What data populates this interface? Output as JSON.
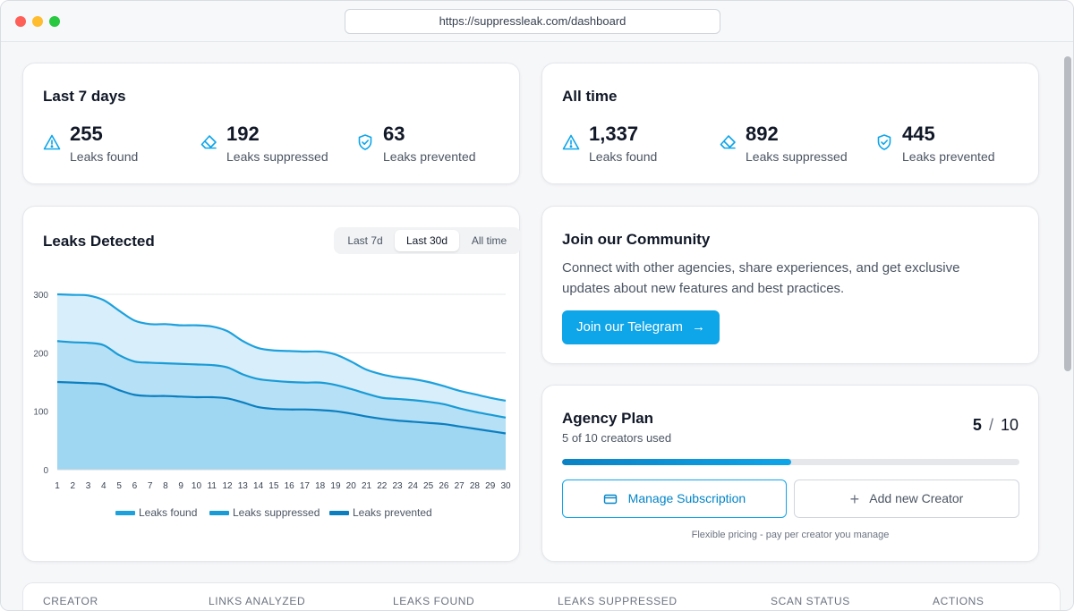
{
  "browser": {
    "url": "https://suppressleak.com/dashboard"
  },
  "last7": {
    "title": "Last 7 days",
    "stats": [
      {
        "value": "255",
        "label": "Leaks found",
        "icon": "warning-triangle-icon"
      },
      {
        "value": "192",
        "label": "Leaks suppressed",
        "icon": "eraser-icon"
      },
      {
        "value": "63",
        "label": "Leaks prevented",
        "icon": "shield-check-icon"
      }
    ]
  },
  "alltime": {
    "title": "All time",
    "stats": [
      {
        "value": "1,337",
        "label": "Leaks found",
        "icon": "warning-triangle-icon"
      },
      {
        "value": "892",
        "label": "Leaks suppressed",
        "icon": "eraser-icon"
      },
      {
        "value": "445",
        "label": "Leaks prevented",
        "icon": "shield-check-icon"
      }
    ]
  },
  "leaks_chart": {
    "title": "Leaks Detected",
    "range_tabs": [
      "Last 7d",
      "Last 30d",
      "All time"
    ],
    "active_tab": "Last 30d"
  },
  "chart_data": {
    "type": "area",
    "title": "Leaks Detected",
    "x": [
      1,
      2,
      3,
      4,
      5,
      6,
      7,
      8,
      9,
      10,
      11,
      12,
      13,
      14,
      15,
      16,
      17,
      18,
      19,
      20,
      21,
      22,
      23,
      24,
      25,
      26,
      27,
      28,
      29,
      30
    ],
    "ylim": [
      0,
      300
    ],
    "yticks": [
      0,
      100,
      200,
      300
    ],
    "grid": true,
    "legend_position": "bottom",
    "series": [
      {
        "name": "Leaks found",
        "color": "#1da1dd",
        "fill": "#d8eefa",
        "values": [
          300,
          299,
          298,
          290,
          272,
          255,
          249,
          249,
          247,
          247,
          245,
          237,
          220,
          208,
          204,
          203,
          202,
          202,
          197,
          185,
          171,
          163,
          158,
          155,
          150,
          143,
          135,
          129,
          123,
          118
        ]
      },
      {
        "name": "Leaks suppressed",
        "color": "#199bd6",
        "fill": "#b5e0f5",
        "values": [
          220,
          218,
          217,
          213,
          196,
          185,
          183,
          182,
          181,
          180,
          179,
          175,
          163,
          155,
          152,
          150,
          149,
          149,
          145,
          138,
          130,
          123,
          121,
          119,
          116,
          112,
          105,
          99,
          94,
          89
        ]
      },
      {
        "name": "Leaks prevented",
        "color": "#0c7fc0",
        "fill": "#9fd6f2",
        "values": [
          150,
          149,
          148,
          146,
          136,
          128,
          126,
          126,
          125,
          124,
          124,
          122,
          115,
          107,
          104,
          103,
          103,
          102,
          100,
          96,
          91,
          87,
          84,
          82,
          80,
          78,
          74,
          70,
          66,
          62
        ]
      }
    ]
  },
  "community": {
    "title": "Join our Community",
    "description": "Connect with other agencies, share experiences, and get exclusive updates about new features and best practices.",
    "button_label": "Join our Telegram",
    "button_arrow": "→"
  },
  "plan": {
    "title": "Agency Plan",
    "used": "5",
    "separator": "/",
    "total": "10",
    "usage_text": "5 of 10 creators used",
    "progress_fraction": 0.5,
    "manage_label": "Manage Subscription",
    "add_label": "Add new Creator",
    "add_icon": "+",
    "note": "Flexible pricing - pay per creator you manage"
  },
  "table": {
    "headers": [
      "CREATOR",
      "LINKS ANALYZED",
      "LEAKS FOUND",
      "LEAKS SUPPRESSED",
      "SCAN STATUS",
      "ACTIONS"
    ]
  },
  "colors": {
    "accent": "#0ea5e9",
    "accent_dark": "#0284c7"
  }
}
